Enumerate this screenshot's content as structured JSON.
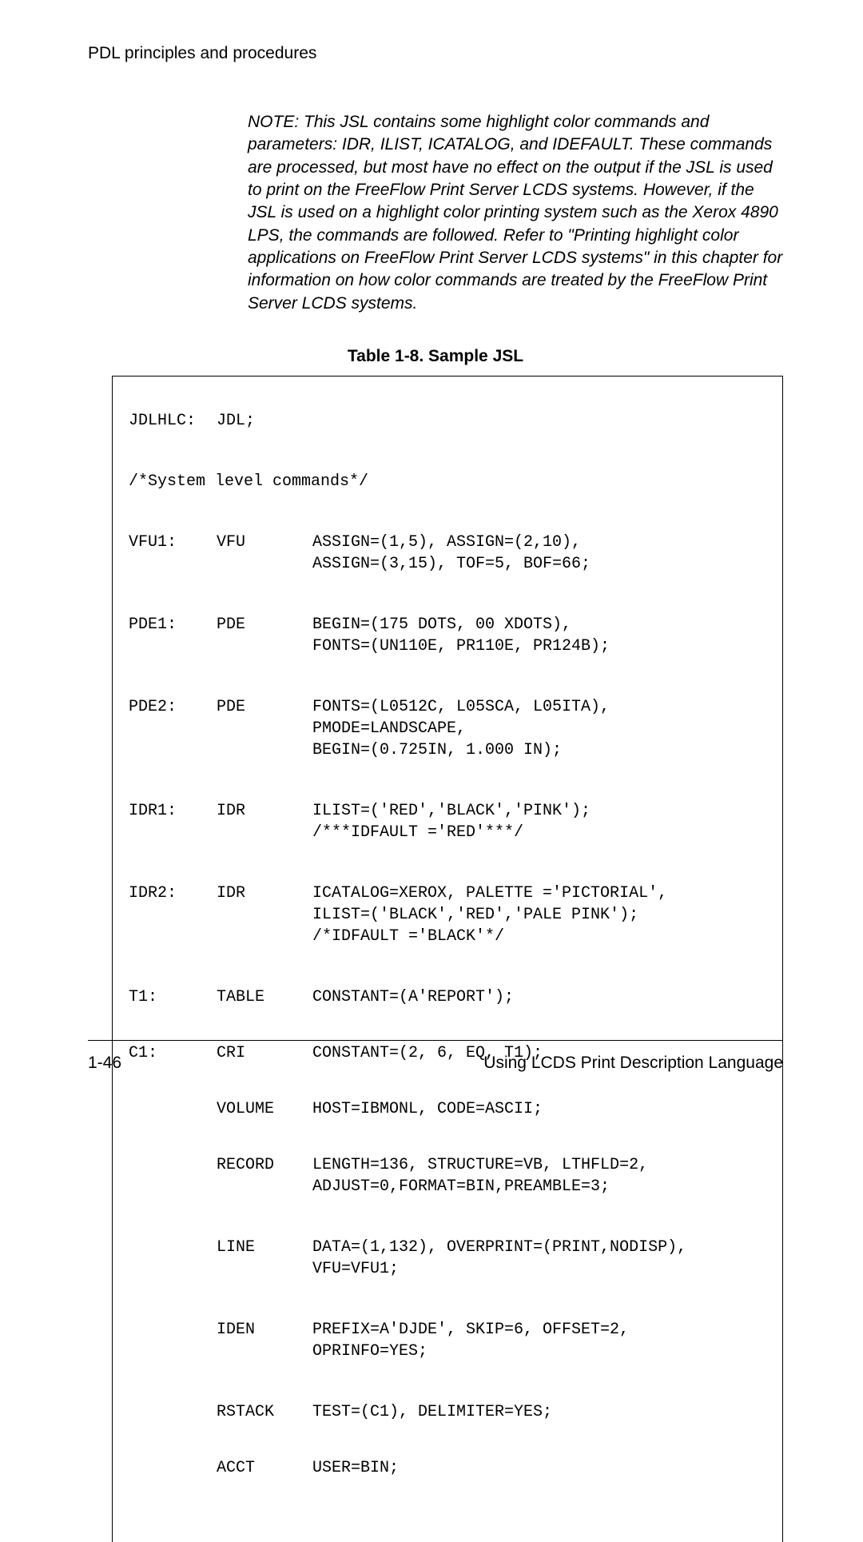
{
  "header": "PDL principles and procedures",
  "note": "NOTE:  This JSL contains some highlight color commands and parameters: IDR, ILIST, ICATALOG, and IDEFAULT. These commands are processed, but most have no effect on the output if the JSL is used to print on the FreeFlow Print Server LCDS systems. However, if the JSL is used on a highlight color printing system such as the Xerox 4890 LPS, the commands are followed. Refer to \"Printing highlight color applications on FreeFlow Print Server LCDS systems\" in this chapter for information on how color commands are treated by the FreeFlow Print Server LCDS systems.",
  "table_caption": "Table 1-8. Sample JSL",
  "code": {
    "r1": {
      "label": "JDLHLC:",
      "cmd": "JDL;",
      "params": ""
    },
    "r2": {
      "label": "/*System level commands*/",
      "cmd": "",
      "params": ""
    },
    "r3": {
      "label": "VFU1:",
      "cmd": "VFU",
      "params": "ASSIGN=(1,5), ASSIGN=(2,10),\nASSIGN=(3,15), TOF=5, BOF=66;"
    },
    "r4": {
      "label": "PDE1:",
      "cmd": "PDE",
      "params": "BEGIN=(175 DOTS, 00 XDOTS),\nFONTS=(UN110E, PR110E, PR124B);"
    },
    "r5": {
      "label": "PDE2:",
      "cmd": "PDE",
      "params": "FONTS=(L0512C, L05SCA, L05ITA),\nPMODE=LANDSCAPE,\nBEGIN=(0.725IN, 1.000 IN);"
    },
    "r6": {
      "label": "IDR1:",
      "cmd": "IDR",
      "params": "ILIST=('RED','BLACK','PINK');\n/***IDFAULT ='RED'***/"
    },
    "r7": {
      "label": "IDR2:",
      "cmd": "IDR",
      "params": "ICATALOG=XEROX, PALETTE ='PICTORIAL',\nILIST=('BLACK','RED','PALE PINK');\n/*IDFAULT ='BLACK'*/"
    },
    "r8": {
      "label": "T1:",
      "cmd": "TABLE",
      "params": "CONSTANT=(A'REPORT');"
    },
    "r9": {
      "label": "C1:",
      "cmd": "CRI",
      "params": "CONSTANT=(2, 6, EQ, T1);"
    },
    "r10": {
      "label": "",
      "cmd": "VOLUME",
      "params": "HOST=IBMONL, CODE=ASCII;"
    },
    "r11": {
      "label": "",
      "cmd": "RECORD",
      "params": "LENGTH=136, STRUCTURE=VB, LTHFLD=2,\nADJUST=0,FORMAT=BIN,PREAMBLE=3;"
    },
    "r12": {
      "label": "",
      "cmd": "LINE",
      "params": "DATA=(1,132), OVERPRINT=(PRINT,NODISP),\nVFU=VFU1;"
    },
    "r13": {
      "label": "",
      "cmd": "IDEN",
      "params": "PREFIX=A'DJDE', SKIP=6, OFFSET=2,\nOPRINFO=YES;"
    },
    "r14": {
      "label": "",
      "cmd": "RSTACK",
      "params": "TEST=(C1), DELIMITER=YES;"
    },
    "r15": {
      "label": "",
      "cmd": "ACCT",
      "params": "USER=BIN;"
    }
  },
  "footer": {
    "left": "1-46",
    "right": "Using LCDS Print Description Language"
  }
}
